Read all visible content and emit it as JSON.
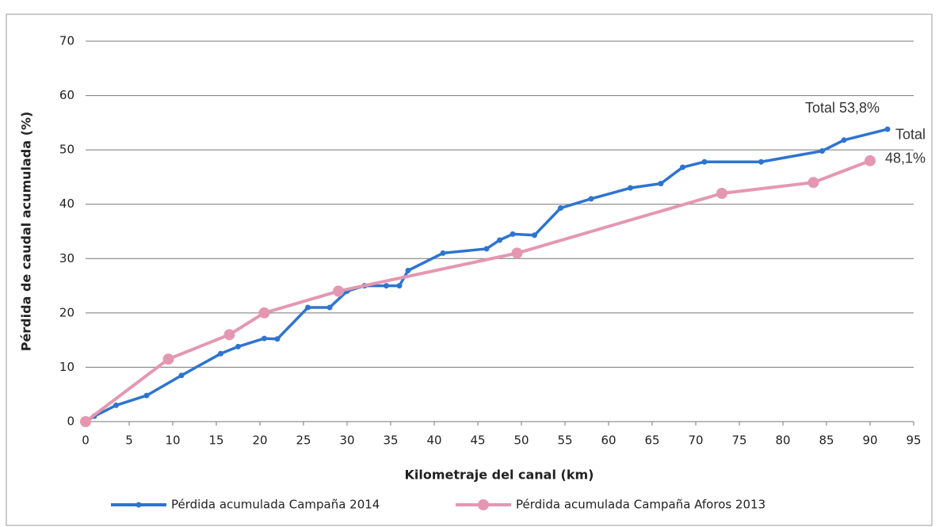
{
  "chart_data": {
    "type": "line",
    "x_label": "Kilometraje del canal (km)",
    "y_label": "Pérdida de caudal acumulada (%)",
    "xlim": [
      0,
      95
    ],
    "xticks": [
      0,
      5,
      10,
      15,
      20,
      25,
      30,
      35,
      40,
      45,
      50,
      55,
      60,
      65,
      70,
      75,
      80,
      85,
      90,
      95
    ],
    "ylim": [
      0,
      70
    ],
    "yticks": [
      0,
      10,
      20,
      30,
      40,
      50,
      60,
      70
    ],
    "grid": true,
    "legend": "bottom",
    "series": [
      {
        "name": "Pérdida acumulada Campaña 2014",
        "color": "#2e74d0",
        "x": [
          0,
          1,
          3.5,
          7,
          11,
          15.5,
          17.5,
          20.5,
          22,
          25.5,
          28,
          30,
          32,
          34.5,
          36,
          37,
          41,
          46,
          47.5,
          49,
          51.5,
          54.5,
          58,
          62.5,
          66,
          68.5,
          71,
          77.5,
          84.5,
          87,
          92
        ],
        "values": [
          0,
          1,
          3,
          4.8,
          8.5,
          12.5,
          13.8,
          15.3,
          15.2,
          21,
          21,
          24,
          25,
          25,
          25,
          27.8,
          31,
          31.8,
          33.4,
          34.5,
          34.3,
          39.3,
          41,
          43,
          43.8,
          46.8,
          47.8,
          47.8,
          49.8,
          51.8,
          53.8
        ]
      },
      {
        "name": "Pérdida acumulada Campaña Aforos 2013",
        "color": "#e597b2",
        "x": [
          0,
          9.5,
          16.5,
          20.5,
          29,
          49.5,
          73,
          83.5,
          90
        ],
        "values": [
          0,
          11.5,
          16,
          20,
          24,
          31,
          42,
          44,
          48
        ]
      }
    ],
    "annotations": [
      "Total 53,8%",
      "Total",
      "48,1%"
    ]
  }
}
